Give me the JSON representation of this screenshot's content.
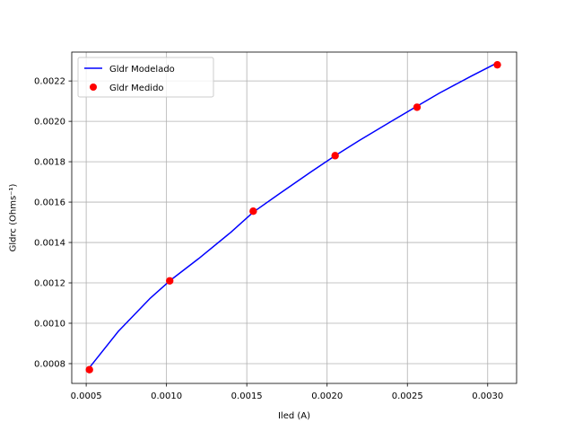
{
  "chart_data": {
    "type": "line",
    "title": "",
    "xlabel": "Iled (A)",
    "ylabel": "Gldrc (Ohms⁻¹)",
    "xlim": [
      0.00041,
      0.00318
    ],
    "ylim": [
      0.000702,
      0.002343
    ],
    "xticks": [
      0.0005,
      0.001,
      0.0015,
      0.002,
      0.0025,
      0.003
    ],
    "xtick_labels": [
      "0.0005",
      "0.0010",
      "0.0015",
      "0.0020",
      "0.0025",
      "0.0030"
    ],
    "yticks": [
      0.0008,
      0.001,
      0.0012,
      0.0014,
      0.0016,
      0.0018,
      0.002,
      0.0022
    ],
    "ytick_labels": [
      "0.0008",
      "0.0010",
      "0.0012",
      "0.0014",
      "0.0016",
      "0.0018",
      "0.0020",
      "0.0022"
    ],
    "grid": true,
    "legend_position": "top-left",
    "series": [
      {
        "name": "Gldr Modelado",
        "kind": "line",
        "color": "#0000ff",
        "x": [
          0.00052,
          0.0007,
          0.0009,
          0.00102,
          0.0012,
          0.0014,
          0.00154,
          0.0017,
          0.0019,
          0.00205,
          0.0022,
          0.0024,
          0.00256,
          0.0027,
          0.0029,
          0.00306
        ],
        "y": [
          0.00078,
          0.00096,
          0.001125,
          0.00121,
          0.00132,
          0.00145,
          0.00155,
          0.00164,
          0.00175,
          0.00183,
          0.001905,
          0.002,
          0.002075,
          0.00214,
          0.002225,
          0.00229
        ]
      },
      {
        "name": "Gldr Medido",
        "kind": "scatter",
        "color": "#ff0000",
        "x": [
          0.00052,
          0.00102,
          0.00154,
          0.00205,
          0.00256,
          0.00306
        ],
        "y": [
          0.00077,
          0.00121,
          0.001555,
          0.00183,
          0.00207,
          0.00228
        ]
      }
    ]
  }
}
